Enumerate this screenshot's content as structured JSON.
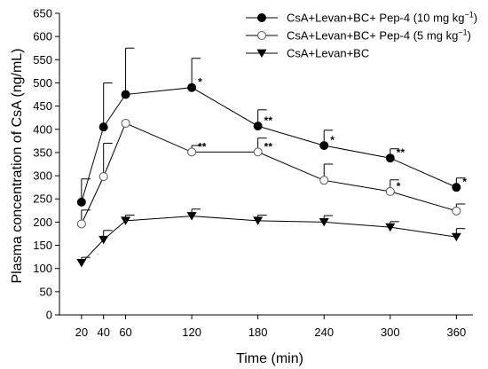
{
  "chart_data": {
    "type": "line",
    "xlabel": "Time (min)",
    "ylabel": "Plasma concentration of CsA (ng/mL)",
    "x": [
      20,
      40,
      60,
      120,
      180,
      240,
      300,
      360
    ],
    "xticks": [
      20,
      40,
      60,
      120,
      180,
      240,
      300,
      360
    ],
    "yticks": [
      0,
      50,
      100,
      150,
      200,
      250,
      300,
      350,
      400,
      450,
      500,
      550,
      600,
      650
    ],
    "ylim": [
      0,
      650
    ],
    "xlim": [
      0,
      375
    ],
    "grid": false,
    "legend_position": "top-right",
    "series": [
      {
        "name": "CsA+Levan+BC+ Pep-4 (10 mg kg",
        "name_sup": "−1",
        "name_suffix": ")",
        "marker": "filled-circle",
        "values": [
          243,
          405,
          475,
          490,
          407,
          365,
          338,
          275
        ],
        "errors": [
          50,
          95,
          100,
          63,
          35,
          33,
          20,
          20
        ],
        "significance": [
          "",
          "",
          "",
          "*",
          "**",
          "*",
          "**",
          "*"
        ]
      },
      {
        "name": "CsA+Levan+BC+ Pep-4 (5 mg kg",
        "name_sup": "−1",
        "name_suffix": ")",
        "marker": "open-circle",
        "values": [
          196,
          298,
          413,
          351,
          351,
          290,
          266,
          224
        ],
        "errors": [
          30,
          72,
          0,
          14,
          30,
          35,
          25,
          15
        ],
        "significance": [
          "",
          "",
          "",
          "**",
          "**",
          "",
          "*",
          ""
        ]
      },
      {
        "name": "CsA+Levan+BC",
        "marker": "filled-triangle-down",
        "values": [
          112,
          162,
          203,
          213,
          203,
          200,
          189,
          168
        ],
        "errors": [
          12,
          20,
          12,
          15,
          12,
          14,
          12,
          18
        ],
        "significance": [
          "",
          "",
          "",
          "",
          "",
          "",
          "",
          ""
        ]
      }
    ]
  }
}
